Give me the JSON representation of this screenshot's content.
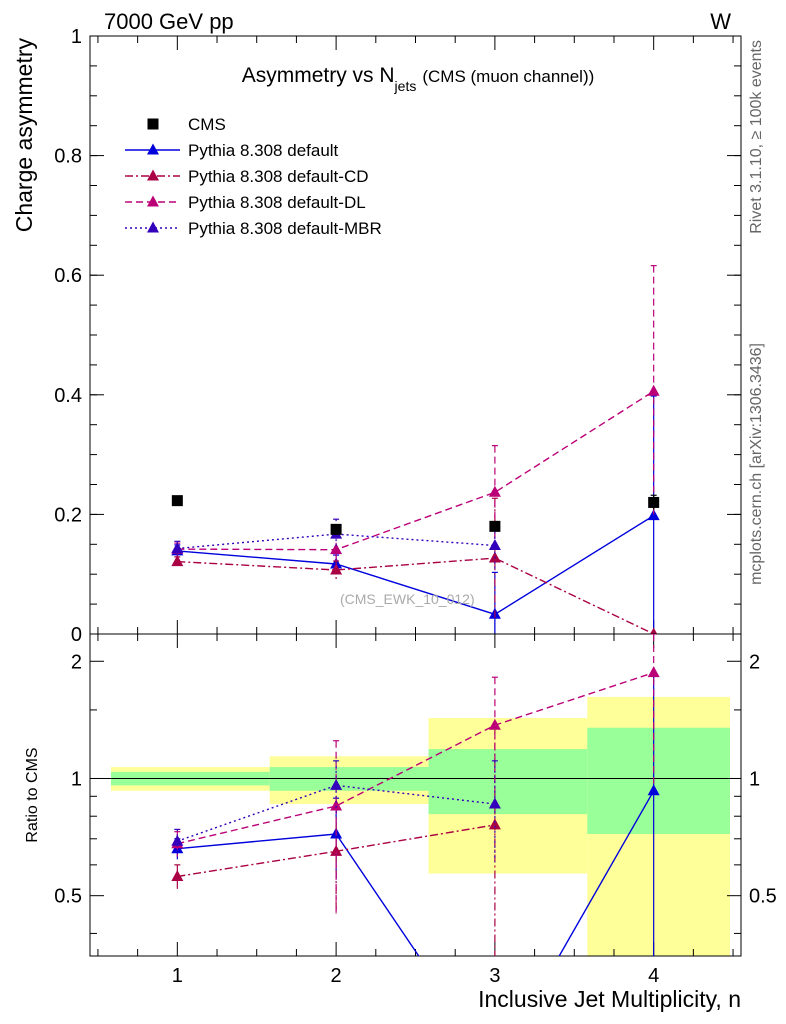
{
  "header": {
    "energy_label": "7000 GeV pp",
    "process_label": "W"
  },
  "side_labels": {
    "rivet": "Rivet 3.1.10, ≥ 100k events",
    "mcplots": "mcplots.cern.ch [arXiv:1306.3436]"
  },
  "chart_data": [
    {
      "type": "line",
      "panel": "main",
      "title_main": "Asymmetry vs N",
      "title_sub": "jets",
      "title_note": "(CMS (muon channel))",
      "ylabel": "Charge asymmetry",
      "watermark": "(CMS_EWK_10_012)",
      "xlim": [
        0.45,
        4.55
      ],
      "ylim": [
        0,
        1
      ],
      "yticks": [
        0,
        0.2,
        0.4,
        0.6,
        0.8,
        1
      ],
      "ytick_labels": [
        "0",
        "0.2",
        "0.4",
        "0.6",
        "0.8",
        "1"
      ],
      "legend_position": "top-left",
      "series": [
        {
          "name": "CMS",
          "style": "data",
          "color": "#000000",
          "marker": "square",
          "x": [
            1,
            2,
            3,
            4
          ],
          "y": [
            0.223,
            0.175,
            0.18,
            0.22
          ],
          "err": [
            0.004,
            0.006,
            0.008,
            0.012
          ]
        },
        {
          "name": "Pythia 8.308 default",
          "style": "solid",
          "color": "#0000dd",
          "marker": "triangle",
          "x": [
            1,
            2,
            3,
            4
          ],
          "y": [
            0.139,
            0.117,
            0.033,
            0.198
          ],
          "err": [
            0.01,
            0.015,
            0.07,
            0.2
          ]
        },
        {
          "name": "Pythia 8.308 default-CD",
          "style": "dashdot",
          "color": "#aa0044",
          "marker": "triangle",
          "x": [
            1,
            2,
            3,
            4
          ],
          "y": [
            0.121,
            0.107,
            0.127,
            0.0
          ],
          "err": [
            0.008,
            0.015,
            0.1,
            0.0
          ]
        },
        {
          "name": "Pythia 8.308 default-DL",
          "style": "dashed",
          "color": "#bb0077",
          "marker": "triangle",
          "x": [
            1,
            2,
            3,
            4
          ],
          "y": [
            0.142,
            0.141,
            0.237,
            0.406
          ],
          "err": [
            0.01,
            0.03,
            0.078,
            0.21
          ]
        },
        {
          "name": "Pythia 8.308 default-MBR",
          "style": "dotted",
          "color": "#3300bb",
          "marker": "triangle",
          "x": [
            1,
            2,
            3
          ],
          "y": [
            0.143,
            0.167,
            0.148
          ],
          "err": [
            0.012,
            0.025,
            0.04
          ]
        }
      ]
    },
    {
      "type": "line",
      "panel": "ratio",
      "ylabel": "Ratio to CMS",
      "xlabel": "Inclusive Jet Multiplicity, n",
      "xlim": [
        0.45,
        4.55
      ],
      "ylim": [
        0.35,
        2.35
      ],
      "xticks": [
        1,
        2,
        3,
        4
      ],
      "xtick_labels": [
        "1",
        "2",
        "3",
        "4"
      ],
      "yticks": [
        0.5,
        1,
        2
      ],
      "ytick_labels": [
        "0.5",
        "1",
        "2"
      ],
      "bands": [
        {
          "x0": 0.5,
          "x1": 1.5,
          "yellow": [
            0.93,
            1.07
          ],
          "green": [
            0.96,
            1.04
          ]
        },
        {
          "x0": 1.5,
          "x1": 2.5,
          "yellow": [
            0.86,
            1.14
          ],
          "green": [
            0.93,
            1.07
          ]
        },
        {
          "x0": 2.5,
          "x1": 3.5,
          "yellow": [
            0.57,
            1.43
          ],
          "green": [
            0.81,
            1.19
          ]
        },
        {
          "x0": 3.5,
          "x1": 4.5,
          "yellow": [
            0.35,
            1.62
          ],
          "green": [
            0.72,
            1.35
          ]
        }
      ],
      "series": [
        {
          "name": "Pythia 8.308 default",
          "style": "solid",
          "color": "#0000dd",
          "marker": "triangle",
          "x": [
            1,
            2,
            3,
            4
          ],
          "y": [
            0.66,
            0.72,
            0.18,
            0.93
          ],
          "err": [
            0.04,
            0.17,
            0.0,
            0.9
          ]
        },
        {
          "name": "Pythia 8.308 default-CD",
          "style": "dashdot",
          "color": "#aa0044",
          "marker": "triangle",
          "x": [
            1,
            2,
            3
          ],
          "y": [
            0.56,
            0.65,
            0.76
          ],
          "err": [
            0.04,
            0.2,
            0.6
          ]
        },
        {
          "name": "Pythia 8.308 default-DL",
          "style": "dashed",
          "color": "#bb0077",
          "marker": "triangle",
          "x": [
            1,
            2,
            3,
            4
          ],
          "y": [
            0.68,
            0.85,
            1.37,
            1.87
          ],
          "err": [
            0.05,
            0.4,
            0.45,
            0.9
          ]
        },
        {
          "name": "Pythia 8.308 default-MBR",
          "style": "dotted",
          "color": "#3300bb",
          "marker": "triangle",
          "x": [
            1,
            2,
            3
          ],
          "y": [
            0.69,
            0.96,
            0.86
          ],
          "err": [
            0.05,
            0.15,
            0.25
          ]
        }
      ]
    }
  ]
}
